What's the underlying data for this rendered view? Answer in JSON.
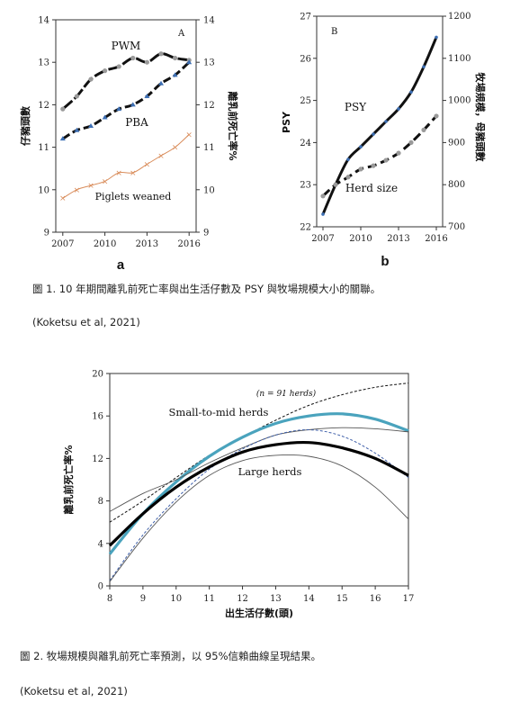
{
  "chart_data": [
    {
      "type": "line",
      "panel_label": "A",
      "sub_letter": "a",
      "ylabel_left": "仔豬頭數",
      "ylabel_right": "離乳前死亡率%",
      "x_ticks": [
        "2007",
        "2010",
        "2013",
        "2016"
      ],
      "y_ticks": [
        "9",
        "10",
        "11",
        "12",
        "13",
        "14"
      ],
      "y2_ticks": [
        "9",
        "10",
        "11",
        "12",
        "13",
        "14"
      ],
      "ylim": [
        9,
        14
      ],
      "xlim": [
        2006.5,
        2016.5
      ],
      "series": [
        {
          "name": "PWM",
          "x": [
            2007,
            2008,
            2009,
            2010,
            2011,
            2012,
            2013,
            2014,
            2015,
            2016
          ],
          "values": [
            11.9,
            12.2,
            12.6,
            12.8,
            12.9,
            13.1,
            13.0,
            13.2,
            13.1,
            13.05
          ],
          "color": "#111111",
          "marker_color": "#9a9a9a"
        },
        {
          "name": "PBA",
          "x": [
            2007,
            2008,
            2009,
            2010,
            2011,
            2012,
            2013,
            2014,
            2015,
            2016
          ],
          "values": [
            11.2,
            11.4,
            11.5,
            11.7,
            11.9,
            12.0,
            12.2,
            12.5,
            12.7,
            13.0
          ],
          "color": "#111111",
          "marker_color": "#3d6fb4"
        },
        {
          "name": "Piglets weaned",
          "x": [
            2007,
            2008,
            2009,
            2010,
            2011,
            2012,
            2013,
            2014,
            2015,
            2016
          ],
          "values": [
            9.8,
            10.0,
            10.1,
            10.2,
            10.4,
            10.4,
            10.6,
            10.8,
            11.0,
            11.3
          ],
          "color": "#d98c5a",
          "marker_color": "#d98c5a"
        }
      ]
    },
    {
      "type": "line",
      "panel_label": "B",
      "sub_letter": "b",
      "ylabel_left": "PSY",
      "ylabel_right": "牧場規模，母豬頭數",
      "x_ticks": [
        "2007",
        "2010",
        "2013",
        "2016"
      ],
      "y_ticks": [
        "22",
        "23",
        "24",
        "25",
        "26",
        "27"
      ],
      "y2_ticks": [
        "700",
        "800",
        "900",
        "1000",
        "1100",
        "1200"
      ],
      "ylim": [
        22,
        27
      ],
      "y2lim": [
        700,
        1200
      ],
      "xlim": [
        2006.5,
        2016.5
      ],
      "series": [
        {
          "name": "PSY",
          "x": [
            2007,
            2008,
            2009,
            2010,
            2011,
            2012,
            2013,
            2014,
            2015,
            2016
          ],
          "values": [
            22.3,
            23.0,
            23.6,
            23.9,
            24.2,
            24.5,
            24.8,
            25.2,
            25.8,
            26.5
          ],
          "color": "#111111",
          "marker_color": "#3d6fb4"
        },
        {
          "name": "Herd size",
          "x": [
            2007,
            2008,
            2009,
            2010,
            2011,
            2012,
            2013,
            2014,
            2015,
            2016
          ],
          "values": [
            773,
            800,
            818,
            837,
            845,
            858,
            875,
            900,
            930,
            963
          ],
          "axis": "right",
          "color": "#111111",
          "marker_color": "#9a9a9a"
        }
      ]
    },
    {
      "type": "line",
      "xlabel": "出生活仔數(頭)",
      "ylabel": "離乳前死亡率%",
      "x_ticks": [
        "8",
        "9",
        "10",
        "11",
        "12",
        "13",
        "14",
        "15",
        "16",
        "17"
      ],
      "y_ticks": [
        "0",
        "4",
        "8",
        "12",
        "16",
        "20"
      ],
      "xlim": [
        8,
        17
      ],
      "ylim": [
        0,
        20
      ],
      "annotations": [
        "(n = 91 herds)",
        "Small-to-mid herds",
        "Large herds"
      ],
      "series": [
        {
          "x": [
            8,
            9,
            10,
            11,
            12,
            13,
            14,
            15,
            16,
            17
          ],
          "values": [
            6.0,
            8.0,
            10.2,
            12.3,
            14.0,
            15.6,
            17.0,
            18.0,
            18.7,
            19.1
          ],
          "style": "dashed-thin"
        },
        {
          "x": [
            8,
            9,
            10,
            11,
            12,
            13,
            14,
            15,
            16,
            17
          ],
          "values": [
            3.0,
            6.8,
            9.8,
            12.2,
            14.0,
            15.3,
            16.0,
            16.2,
            15.7,
            14.6
          ],
          "style": "teal-thick"
        },
        {
          "x": [
            8,
            9,
            10,
            11,
            12,
            13,
            14,
            15,
            16,
            17
          ],
          "values": [
            7.0,
            8.7,
            10.0,
            11.6,
            13.0,
            14.2,
            14.7,
            14.9,
            14.8,
            14.5
          ],
          "style": "grey-thin"
        },
        {
          "x": [
            8,
            9,
            10,
            11,
            12,
            13,
            14,
            15,
            16,
            17
          ],
          "values": [
            0.5,
            4.8,
            8.2,
            11.0,
            12.9,
            14.2,
            14.7,
            14.1,
            12.5,
            10.2
          ],
          "style": "blue-dashed-thin"
        },
        {
          "x": [
            8,
            9,
            10,
            11,
            12,
            13,
            14,
            15,
            16,
            17
          ],
          "values": [
            3.8,
            6.8,
            9.3,
            11.2,
            12.6,
            13.3,
            13.5,
            13.0,
            12.0,
            10.4
          ],
          "style": "black-thick"
        },
        {
          "x": [
            8,
            9,
            10,
            11,
            12,
            13,
            14,
            15,
            16,
            17
          ],
          "values": [
            0.4,
            4.5,
            7.9,
            10.4,
            11.8,
            12.3,
            12.2,
            11.3,
            9.3,
            6.3
          ],
          "style": "grey-thin"
        }
      ]
    }
  ],
  "captions": {
    "fig1": "圖 1. 10 年期間離乳前死亡率與出生活仔數及 PSY 與牧場規模大小的關聯。",
    "fig1_source": "(Koketsu et al, 2021)",
    "fig2": "圖 2. 牧場規模與離乳前死亡率預測，以 95%信賴曲線呈現結果。",
    "fig2_source": "(Koketsu et al, 2021)"
  }
}
